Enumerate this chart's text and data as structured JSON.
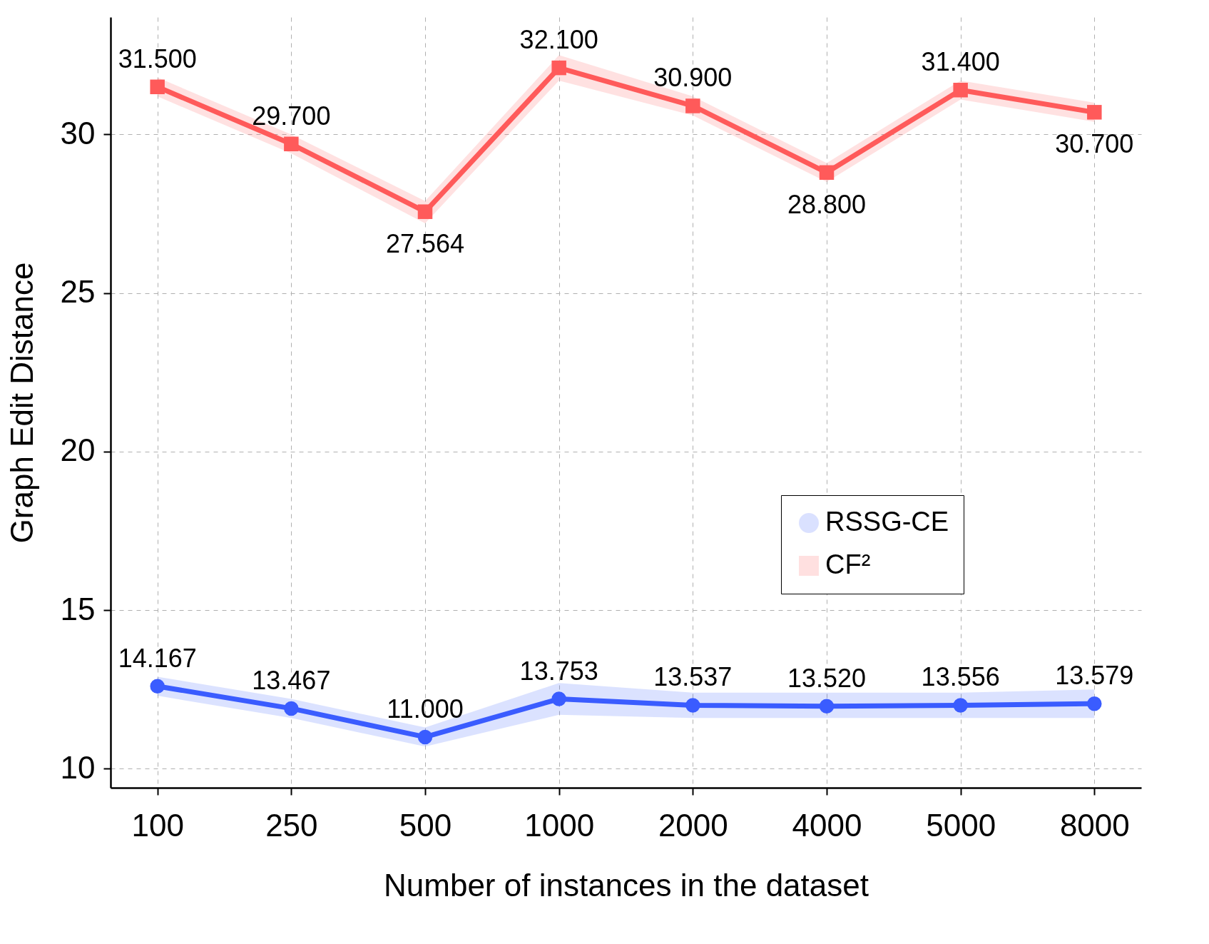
{
  "chart_data": {
    "type": "line",
    "xlabel": "Number of instances in the dataset",
    "ylabel": "Graph Edit Distance",
    "categories": [
      "100",
      "250",
      "500",
      "1000",
      "2000",
      "4000",
      "5000",
      "8000"
    ],
    "annotations": [
      {
        "text": "14.167",
        "x": "100",
        "y": 12.6
      },
      {
        "text": "13.467",
        "x": "250",
        "y": 11.9
      },
      {
        "text": "11.000",
        "x": "500",
        "y": 11.0
      },
      {
        "text": "13.753",
        "x": "1000",
        "y": 12.2
      },
      {
        "text": "13.537",
        "x": "2000",
        "y": 12.0
      },
      {
        "text": "13.520",
        "x": "4000",
        "y": 11.97
      },
      {
        "text": "13.556",
        "x": "5000",
        "y": 12.0
      },
      {
        "text": "13.579",
        "x": "8000",
        "y": 12.05
      }
    ],
    "ylim": [
      9.4,
      33.7
    ],
    "yticks": [
      10,
      15,
      20,
      25,
      30
    ],
    "grid": true,
    "legend": "right",
    "line_style": "solid",
    "series": [
      {
        "name": "RSSG-CE",
        "color": "#3a5cff",
        "marker": "circle",
        "values": [
          12.6,
          11.9,
          11.0,
          12.2,
          12.0,
          11.97,
          12.0,
          12.05
        ],
        "lower": [
          12.3,
          11.6,
          10.7,
          11.7,
          11.6,
          11.6,
          11.6,
          11.6
        ],
        "upper": [
          12.9,
          12.2,
          11.3,
          12.7,
          12.4,
          12.4,
          12.4,
          12.5
        ]
      },
      {
        "name": "CF²",
        "color": "#ff5a5a",
        "marker": "square",
        "values": [
          31.5,
          29.7,
          27.564,
          32.1,
          30.9,
          28.8,
          31.4,
          30.7
        ],
        "lower": [
          31.2,
          29.4,
          27.2,
          31.7,
          30.6,
          28.5,
          31.1,
          30.4
        ],
        "upper": [
          31.8,
          30.0,
          27.9,
          32.5,
          31.2,
          29.1,
          31.7,
          31.0
        ],
        "value_labels": [
          "31.500",
          "29.700",
          "27.564",
          "32.100",
          "30.900",
          "28.800",
          "31.400",
          "30.700"
        ]
      }
    ]
  }
}
